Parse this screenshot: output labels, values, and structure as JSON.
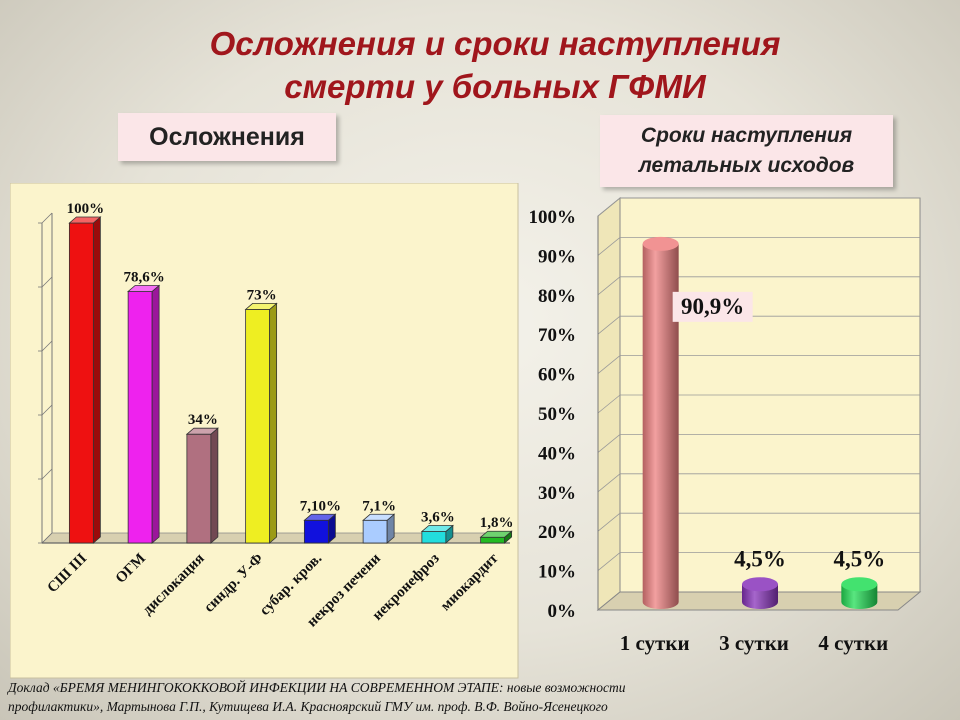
{
  "slide": {
    "title_line1": "Осложнения  и сроки наступления",
    "title_line2": "смерти у больных  ГФМИ",
    "label_left": "Осложнения",
    "label_right_line1": "Сроки наступления",
    "label_right_line2": "летальных исходов",
    "footnote_line1": "Доклад «БРЕМЯ  МЕНИНГОКОККОВОЙ ИНФЕКЦИИ НА СОВРЕМЕННОМ ЭТАПЕ: новые возможности",
    "footnote_line2": "профилактики», Мартынова Г.П., Кутищева И.А. Красноярский ГМУ им. проф. В.Ф. Войно-Ясенецкого"
  },
  "chart_data": [
    {
      "type": "bar",
      "title": "Осложнения",
      "categories": [
        "СШ III",
        "ОГМ",
        "дислокация",
        "синдр. У-Ф",
        "субар. кров.",
        "некроз печени",
        "некронефроз",
        "миокардит"
      ],
      "values": [
        100,
        78.6,
        34,
        73,
        7.1,
        7.1,
        3.6,
        1.8
      ],
      "data_labels": [
        "100%",
        "78,6%",
        "34%",
        "73%",
        "7,10%",
        "7,1%",
        "3,6%",
        "1,8%"
      ],
      "colors": [
        "#ee1111",
        "#ee22ee",
        "#b07080",
        "#eeee22",
        "#1111dd",
        "#aaccff",
        "#22dddd",
        "#22bb22"
      ],
      "ylim": [
        0,
        100
      ],
      "grid": true,
      "background": "#fbf4cc"
    },
    {
      "type": "bar",
      "title": "Сроки наступления летальных исходов",
      "categories": [
        "1 сутки",
        "3 сутки",
        "4 сутки"
      ],
      "values": [
        90.9,
        4.5,
        4.5
      ],
      "data_labels": [
        "90,9%",
        "4,5%",
        "4,5%"
      ],
      "colors": [
        "#ee8080",
        "#8833bb",
        "#22dd55"
      ],
      "ylim": [
        0,
        100
      ],
      "yticks": [
        "0%",
        "10%",
        "20%",
        "30%",
        "40%",
        "50%",
        "60%",
        "70%",
        "80%",
        "90%",
        "100%"
      ],
      "grid": true,
      "background": "#fbf4cc"
    }
  ]
}
